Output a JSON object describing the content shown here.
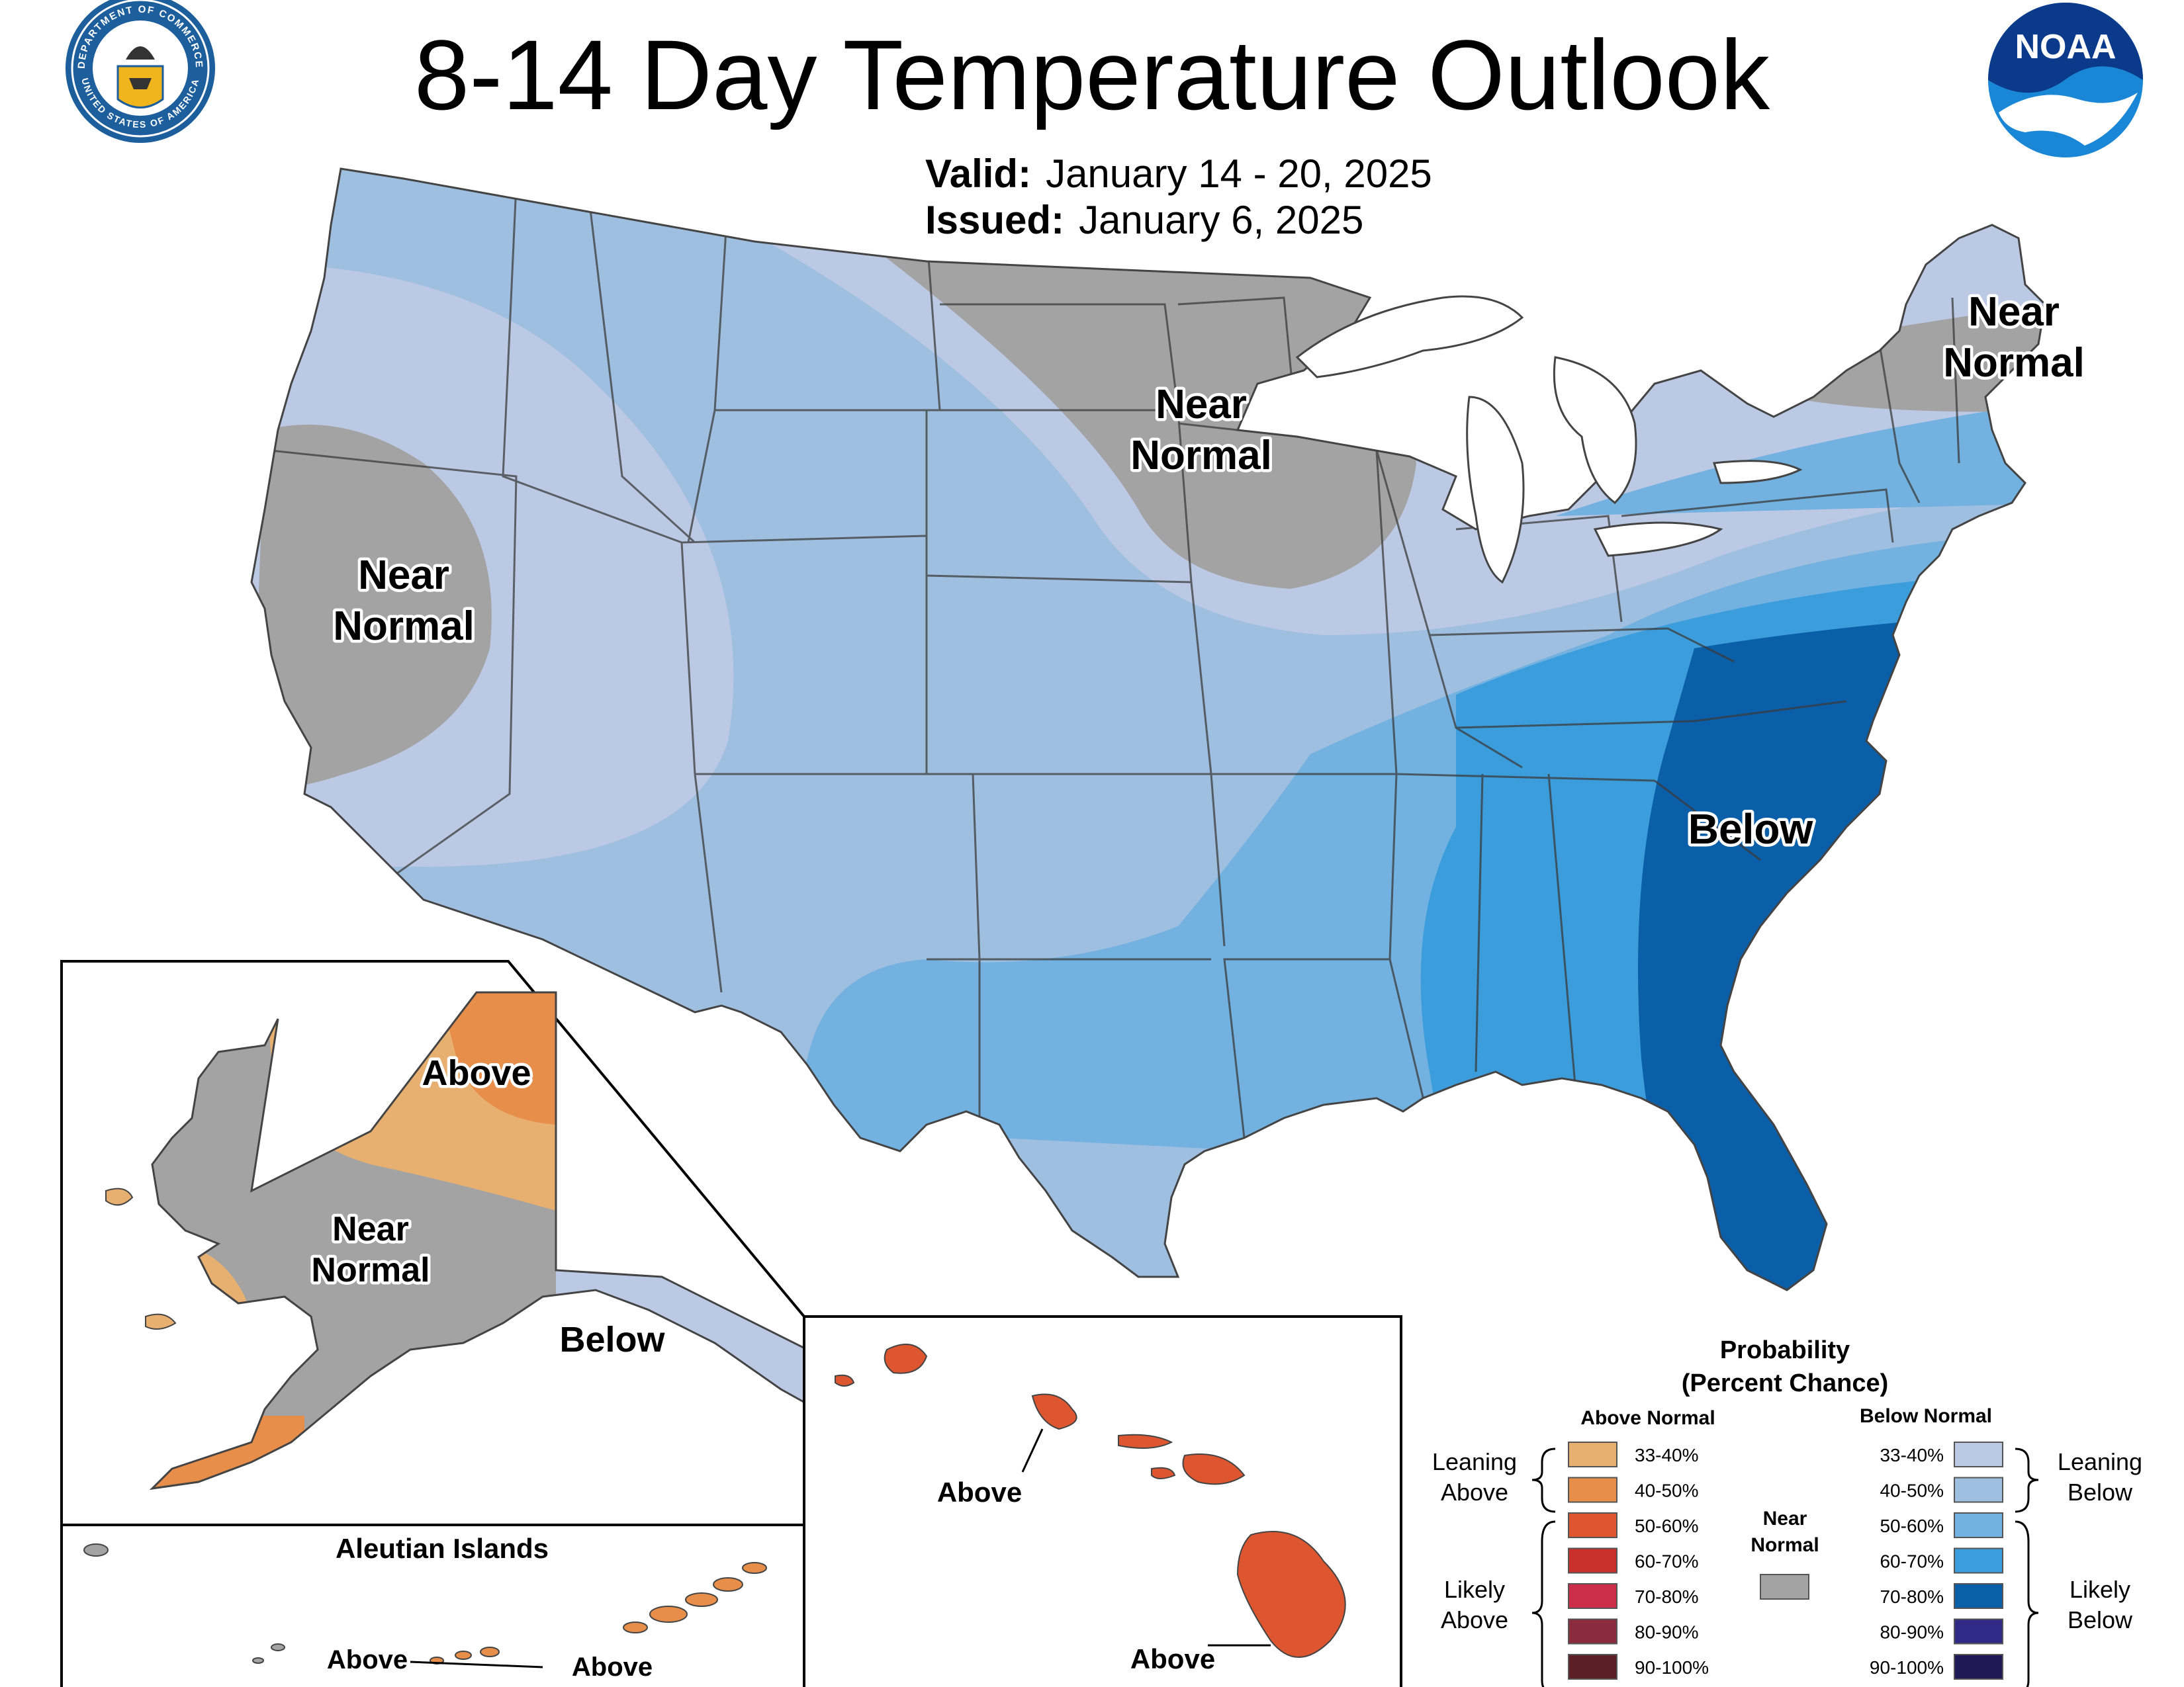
{
  "title": "8-14 Day Temperature Outlook",
  "valid_label": "Valid:",
  "valid_dates": "January 14 - 20, 2025",
  "issued_label": "Issued:",
  "issued_date": "January 6, 2025",
  "logos": {
    "left_seal_text": "DEPARTMENT OF COMMERCE · UNITED STATES OF AMERICA",
    "right_logo_text": "NOAA"
  },
  "map_labels": {
    "conus_west": [
      "Near",
      "Normal"
    ],
    "conus_north": [
      "Near",
      "Normal"
    ],
    "conus_northeast": [
      "Near",
      "Normal"
    ],
    "conus_southeast": "Below",
    "alaska_north": "Above",
    "alaska_center": [
      "Near",
      "Normal"
    ],
    "alaska_panhandle": "Below",
    "aleutian_title": "Aleutian Islands",
    "aleutian_left": "Above",
    "aleutian_right": "Above",
    "hawaii_oahu": "Above",
    "hawaii_big_island": "Above"
  },
  "legend": {
    "title": "Probability",
    "subtitle": "(Percent Chance)",
    "above_header": "Above Normal",
    "below_header": "Below Normal",
    "near_normal": [
      "Near",
      "Normal"
    ],
    "leaning_above": [
      "Leaning",
      "Above"
    ],
    "likely_above": [
      "Likely",
      "Above"
    ],
    "leaning_below": [
      "Leaning",
      "Below"
    ],
    "likely_below": [
      "Likely",
      "Below"
    ],
    "above_bins": [
      {
        "label": "33-40%",
        "color": "#e8b070"
      },
      {
        "label": "40-50%",
        "color": "#e78e4a"
      },
      {
        "label": "50-60%",
        "color": "#de5630"
      },
      {
        "label": "60-70%",
        "color": "#c9302c"
      },
      {
        "label": "70-80%",
        "color": "#cc2e4a"
      },
      {
        "label": "80-90%",
        "color": "#8a2c3e"
      },
      {
        "label": "90-100%",
        "color": "#5c1f26"
      }
    ],
    "below_bins": [
      {
        "label": "33-40%",
        "color": "#bcc9e5"
      },
      {
        "label": "40-50%",
        "color": "#9fbfe0"
      },
      {
        "label": "50-60%",
        "color": "#72b1e0"
      },
      {
        "label": "60-70%",
        "color": "#3b9ddc"
      },
      {
        "label": "70-80%",
        "color": "#0b5ea8"
      },
      {
        "label": "80-90%",
        "color": "#2e2a86"
      },
      {
        "label": "90-100%",
        "color": "#1f1a57"
      }
    ],
    "near_color": "#a3a3a3"
  }
}
